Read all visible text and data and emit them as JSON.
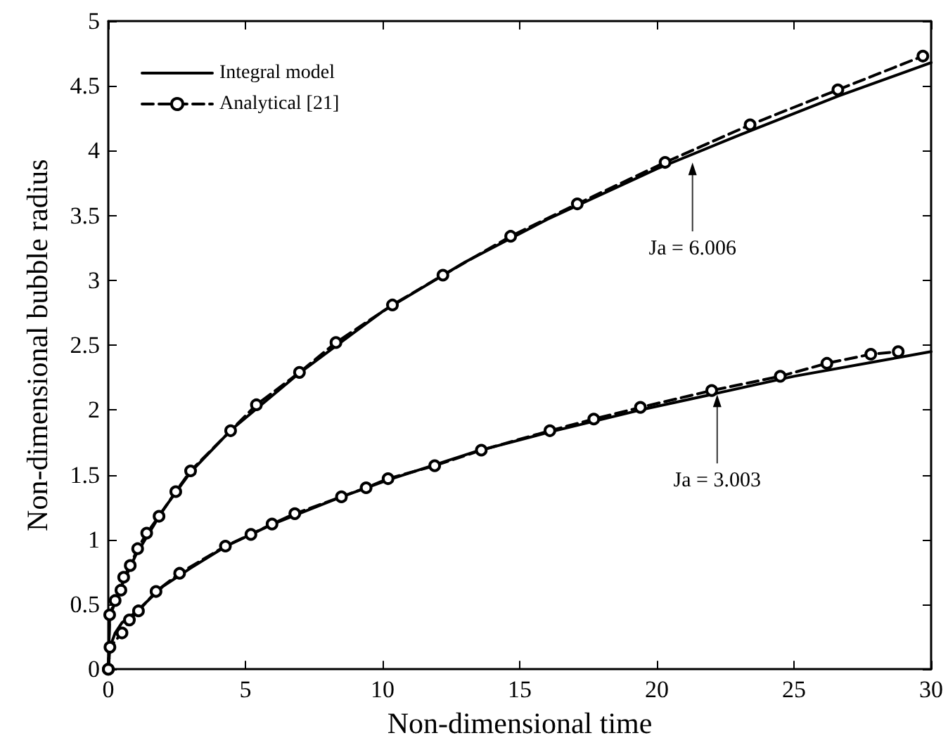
{
  "chart_data": {
    "type": "line",
    "xlabel": "Non-dimensional time",
    "ylabel": "Non-dimensional bubble radius",
    "xlim": [
      0,
      30
    ],
    "xticks": [
      0,
      5,
      10,
      15,
      20,
      25,
      30
    ],
    "ylim": [
      0,
      5
    ],
    "yticks": [
      0,
      0.5,
      1,
      1.5,
      2,
      2.5,
      3,
      3.5,
      4,
      4.5,
      5
    ],
    "grid": false,
    "legend": "top left",
    "series": [
      {
        "name": "Integral model",
        "color": "#000000",
        "line_style": "solid",
        "marker": "none",
        "x": [
          0,
          0.05,
          0.25,
          0.5,
          1,
          2,
          3,
          4.5,
          7,
          10,
          13,
          16,
          20,
          23,
          26.6,
          30
        ],
        "values": [
          0,
          0.4,
          0.52,
          0.65,
          0.88,
          1.23,
          1.52,
          1.85,
          2.29,
          2.76,
          3.14,
          3.47,
          3.86,
          4.12,
          4.42,
          4.68
        ]
      },
      {
        "name": "Analytical [21]",
        "color": "#000000",
        "line_style": "dashed",
        "marker": "circle",
        "x": [
          0,
          0.05,
          0.25,
          0.46,
          0.56,
          0.8,
          1.07,
          1.4,
          1.85,
          2.46,
          3.0,
          4.46,
          5.4,
          6.97,
          8.3,
          10.36,
          12.2,
          14.67,
          17.1,
          20.3,
          23.4,
          26.6,
          29.7
        ],
        "values": [
          0,
          0.42,
          0.53,
          0.61,
          0.71,
          0.8,
          0.93,
          1.05,
          1.18,
          1.37,
          1.53,
          1.84,
          2.04,
          2.29,
          2.52,
          2.81,
          3.04,
          3.34,
          3.59,
          3.91,
          4.2,
          4.47,
          4.73
        ]
      },
      {
        "color": "#000000",
        "line_style": "solid",
        "marker": "none",
        "x": [
          0,
          0.06,
          0.25,
          0.5,
          1,
          2,
          3,
          4.3,
          6,
          8.5,
          10.2,
          13.4,
          16.1,
          19.4,
          22,
          25,
          30
        ],
        "values": [
          0,
          0.17,
          0.28,
          0.36,
          0.44,
          0.64,
          0.78,
          0.95,
          1.12,
          1.33,
          1.46,
          1.68,
          1.83,
          2.0,
          2.12,
          2.26,
          2.45
        ]
      },
      {
        "color": "#000000",
        "line_style": "dashed",
        "marker": "circle",
        "x": [
          0,
          0.06,
          0.5,
          0.77,
          1.1,
          1.74,
          2.6,
          4.27,
          5.2,
          5.97,
          6.8,
          8.5,
          9.4,
          10.2,
          11.9,
          13.6,
          16.1,
          17.7,
          19.4,
          22,
          24.5,
          26.2,
          27.8,
          28.8
        ],
        "values": [
          0,
          0.17,
          0.28,
          0.38,
          0.45,
          0.6,
          0.74,
          0.95,
          1.04,
          1.12,
          1.2,
          1.33,
          1.4,
          1.47,
          1.57,
          1.69,
          1.84,
          1.93,
          2.02,
          2.15,
          2.26,
          2.36,
          2.43,
          2.45
        ]
      }
    ],
    "annotations": [
      {
        "text": "Ja = 6.006",
        "x": 21.3,
        "y": 3.92
      },
      {
        "text": "Ja = 3.003",
        "x": 22.2,
        "y": 2.13
      }
    ]
  }
}
